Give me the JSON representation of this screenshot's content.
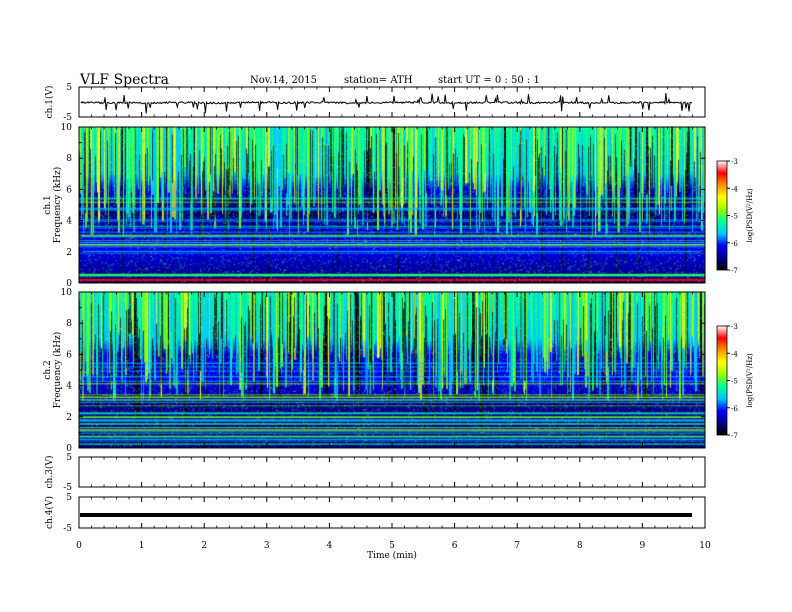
{
  "header": {
    "title": "VLF  Spectra",
    "date": "Nov.14, 2015",
    "station": "station= ATH",
    "start": "start  UT  =   0 : 50 : 1"
  },
  "colors": {
    "colormap": [
      "#000000",
      "#00008b",
      "#0000ff",
      "#00c8ff",
      "#00ff96",
      "#96ff00",
      "#ffff00",
      "#ff9600",
      "#ff0000",
      "#ffffff"
    ],
    "trace": "#000000"
  },
  "chart_data": [
    {
      "type": "line",
      "ylabel": "ch.1(V)",
      "ylim": [
        -5,
        5
      ],
      "yticks": [
        "5",
        "-5"
      ],
      "series": [
        {
          "values": [
            -0.1,
            -0.3,
            -0.2,
            -0.4,
            -0.1,
            -0.2,
            -0.3,
            -0.2,
            -0.1,
            -0.3,
            -0.2,
            -0.1,
            -0.4,
            -0.2,
            -0.2,
            -0.1,
            -0.3,
            -0.2,
            -0.1,
            -0.2,
            -0.3,
            -0.1,
            -0.2,
            -0.4,
            -0.2,
            -0.1,
            -0.2,
            -0.3
          ]
        }
      ]
    },
    {
      "type": "heatmap",
      "ylabel": "ch.1\nFrequency (kHz)",
      "ylim": [
        0,
        10
      ],
      "yticks": [
        "0",
        "2",
        "4",
        "6",
        "8",
        "10"
      ],
      "colorbar": {
        "label": "log(PSD(V²/Hz)",
        "range": [
          -7,
          -3
        ],
        "ticks": [
          "-3",
          "-4",
          "-5",
          "-6",
          "-7"
        ]
      }
    },
    {
      "type": "heatmap",
      "ylabel": "ch.2\nFrequency (kHz)",
      "ylim": [
        0,
        10
      ],
      "yticks": [
        "0",
        "2",
        "4",
        "6",
        "8",
        "10"
      ],
      "colorbar": {
        "label": "log(PSD(V²/Hz)",
        "range": [
          -7,
          -3
        ],
        "ticks": [
          "-3",
          "-4",
          "-5",
          "-6",
          "-7"
        ]
      }
    },
    {
      "type": "line",
      "ylabel": "ch.3(V)",
      "ylim": [
        -5,
        5
      ],
      "yticks": [
        "5",
        "-5"
      ],
      "series": [
        {
          "values": []
        }
      ]
    },
    {
      "type": "line",
      "ylabel": "ch.4(V)",
      "ylim": [
        -5,
        5
      ],
      "yticks": [
        "5",
        "-5"
      ],
      "series": [
        {
          "values": [
            -0.8,
            -0.8
          ]
        }
      ]
    }
  ],
  "xaxis": {
    "xlabel": "Time  (min)",
    "xlim": [
      0,
      10
    ],
    "xticks": [
      "0",
      "1",
      "2",
      "3",
      "4",
      "5",
      "6",
      "7",
      "8",
      "9",
      "10"
    ]
  }
}
